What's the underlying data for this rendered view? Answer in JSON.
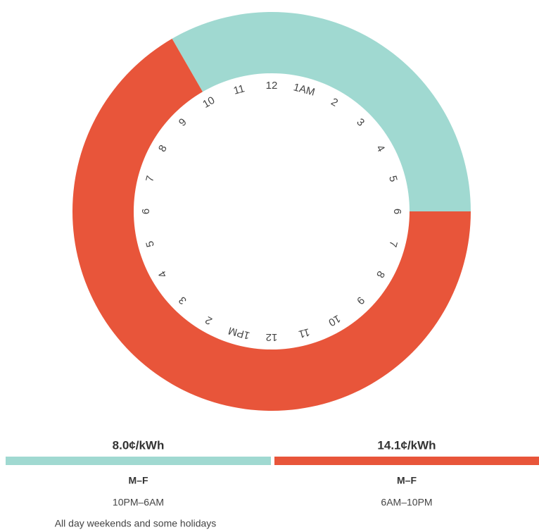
{
  "clock": {
    "labels": [
      "12",
      "1AM",
      "2",
      "3",
      "4",
      "5",
      "6",
      "7",
      "8",
      "9",
      "10",
      "11",
      "12",
      "1PM",
      "2",
      "3",
      "4",
      "5",
      "6",
      "7",
      "8",
      "9",
      "10",
      "11"
    ]
  },
  "rates": [
    {
      "price": "8.0¢/kWh",
      "days": "M–F",
      "hours": "10PM–6AM",
      "note": "All day weekends and some holidays",
      "color": "#a0d9d1",
      "start": 22,
      "end": 6
    },
    {
      "price": "14.1¢/kWh",
      "days": "M–F",
      "hours": "6AM–10PM",
      "color": "#e8553a",
      "start": 6,
      "end": 22
    }
  ]
}
